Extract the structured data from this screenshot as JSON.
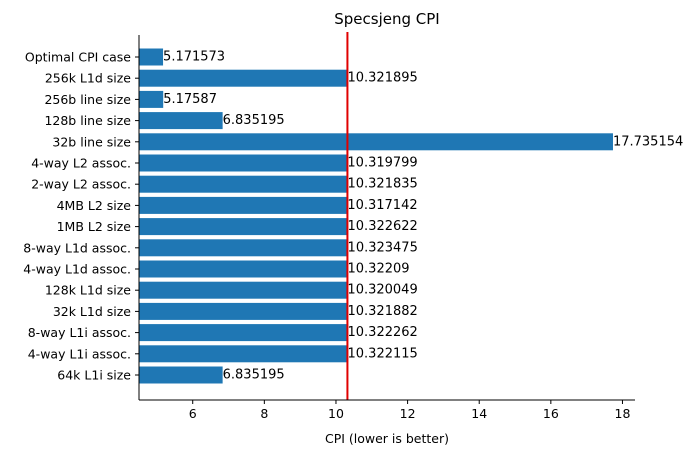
{
  "chart_data": {
    "type": "bar",
    "orientation": "horizontal",
    "title": "Specsjeng CPI",
    "xlabel": "CPI (lower is better)",
    "ylabel": "",
    "xlim": [
      4.5,
      18.35
    ],
    "xticks": [
      6,
      8,
      10,
      12,
      14,
      16,
      18
    ],
    "bar_color": "#1f77b4",
    "reference_line": {
      "value": 10.32,
      "color": "#e00000"
    },
    "categories": [
      "Optimal CPI case",
      "256k L1d size",
      "256b line size",
      "128b line size",
      "32b line size",
      "4-way L2 assoc.",
      "2-way L2 assoc.",
      "4MB L2 size",
      "1MB L2 size",
      "8-way L1d assoc.",
      "4-way L1d assoc.",
      "128k L1d size",
      "32k L1d size",
      "8-way L1i assoc.",
      "4-way L1i assoc.",
      "64k L1i size"
    ],
    "values": [
      5.171573,
      10.321895,
      5.17587,
      6.835195,
      17.735154,
      10.319799,
      10.321835,
      10.317142,
      10.322622,
      10.323475,
      10.32209,
      10.320049,
      10.321882,
      10.322262,
      10.322115,
      6.835195
    ],
    "value_labels": [
      "5.171573",
      "10.321895",
      "5.17587",
      "6.835195",
      "17.735154",
      "10.319799",
      "10.321835",
      "10.317142",
      "10.322622",
      "10.323475",
      "10.32209",
      "10.320049",
      "10.321882",
      "10.322262",
      "10.322115",
      "6.835195"
    ],
    "grid": false,
    "legend": "none"
  }
}
